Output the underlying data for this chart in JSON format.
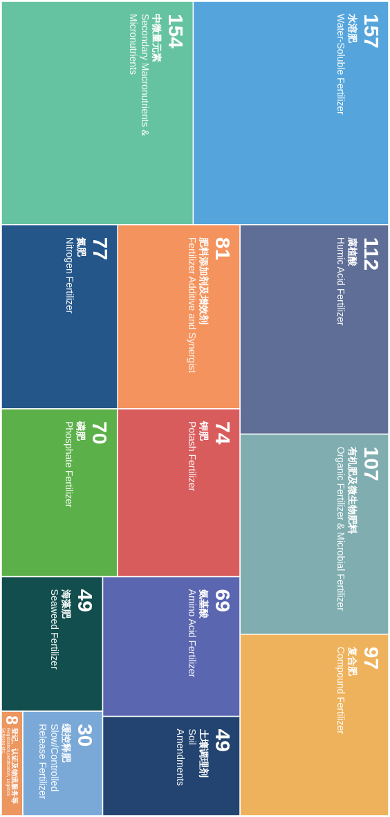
{
  "chart_data": {
    "type": "other",
    "data_labels": true,
    "categories": [
      "**水溶肥** Water-Soluble Fertilizer",
      "**中微量元素** Secondary Macronutrients & Micronutrients",
      "**腐植酸** Humic Acid Fertilizer",
      "**有机肥及微生物肥料** Organic Fertilizer & Microbial Fertilizer",
      "**复合肥** Compound Fertilizer",
      "**肥料添加剂及增效剂** Fertilizer Additive and Synergist",
      "**氮肥** Nitrogen Fertilizer",
      "**钾肥** Potash Fertilizer",
      "**磷肥** Phosphate Fertilizer",
      "**氨基酸** Amino Acid Fertilizer",
      "**海藻肥** Seaweed Fertilizer",
      "**土壤调理剂** Soil Amendments",
      "**缓控释肥** Slow/Controlled Release Fertilizer",
      "**登记、认证及物流服务等** Registration,certification, Logistics Services etc."
    ],
    "values": [
      157,
      154,
      112,
      107,
      97,
      81,
      77,
      74,
      70,
      69,
      49,
      49,
      30,
      8
    ],
    "colors": [
      "#55a5dc",
      "#66c3a1",
      "#5f6e96",
      "#7fadb0",
      "#efb25c",
      "#f4935d",
      "#24568a",
      "#d95c5c",
      "#5cb04a",
      "#5a66b0",
      "#124e4d",
      "#234470",
      "#7aa9d8",
      "#ec9660"
    ]
  }
}
